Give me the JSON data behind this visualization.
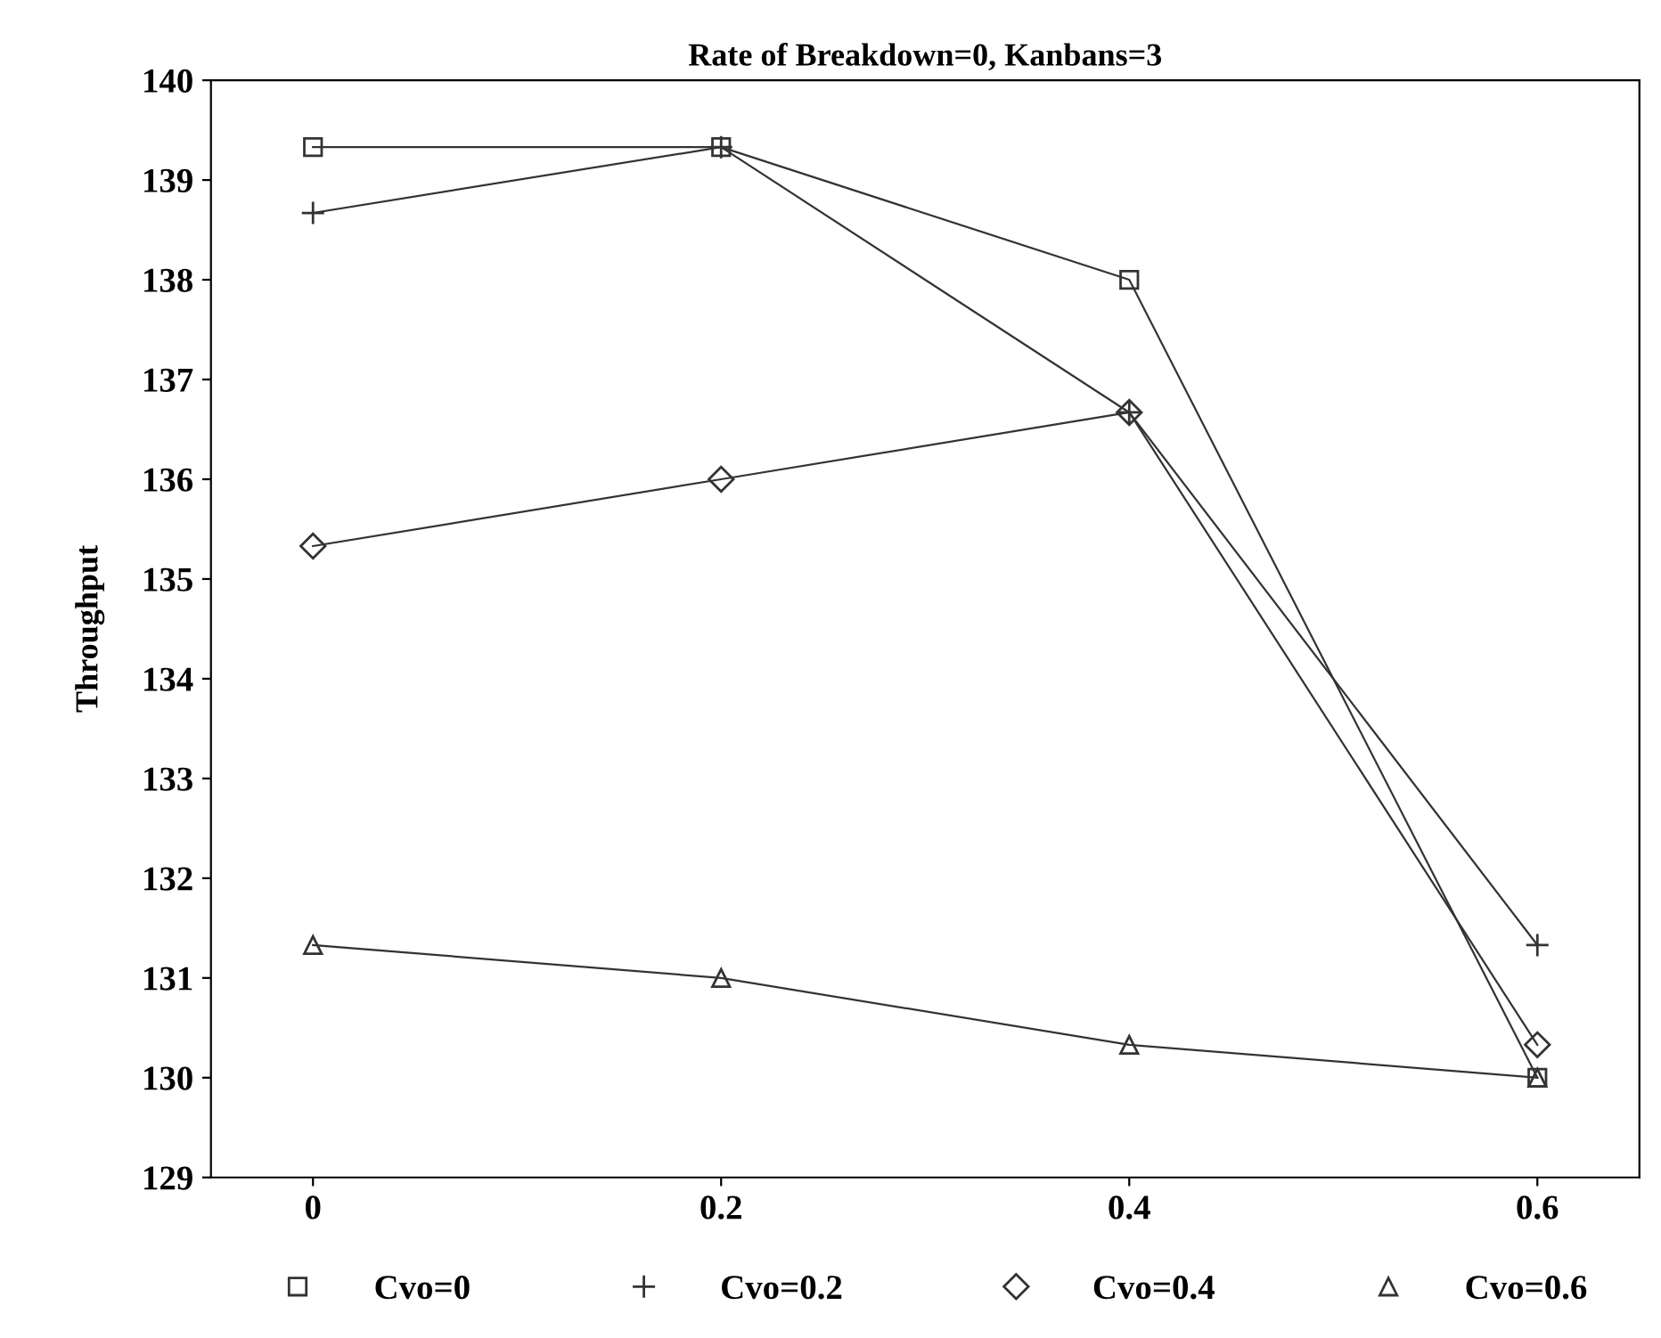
{
  "chart_data": {
    "type": "line",
    "title": "Rate of Breakdown=0, Kanbans=3",
    "ylabel": "Throughput",
    "categories": [
      "0",
      "0.2",
      "0.4",
      "0.6"
    ],
    "series": [
      {
        "name": "Cvo=0",
        "color": "#333333",
        "marker": "square",
        "values": [
          139.33,
          139.33,
          138.0,
          130.0
        ]
      },
      {
        "name": "Cvo=0.2",
        "color": "#333333",
        "marker": "cross",
        "values": [
          138.67,
          139.33,
          136.67,
          131.33
        ]
      },
      {
        "name": "Cvo=0.4",
        "color": "#333333",
        "marker": "diamond",
        "values": [
          135.33,
          136.0,
          136.67,
          130.33
        ]
      },
      {
        "name": "Cvo=0.6",
        "color": "#333333",
        "marker": "triangle",
        "values": [
          131.33,
          131.0,
          130.33,
          130.0
        ]
      }
    ],
    "ylim": [
      129,
      140
    ],
    "yticks": [
      129,
      130,
      131,
      132,
      133,
      134,
      135,
      136,
      137,
      138,
      139,
      140
    ],
    "grid": false,
    "legend": "bottom",
    "line_style": "solid"
  }
}
